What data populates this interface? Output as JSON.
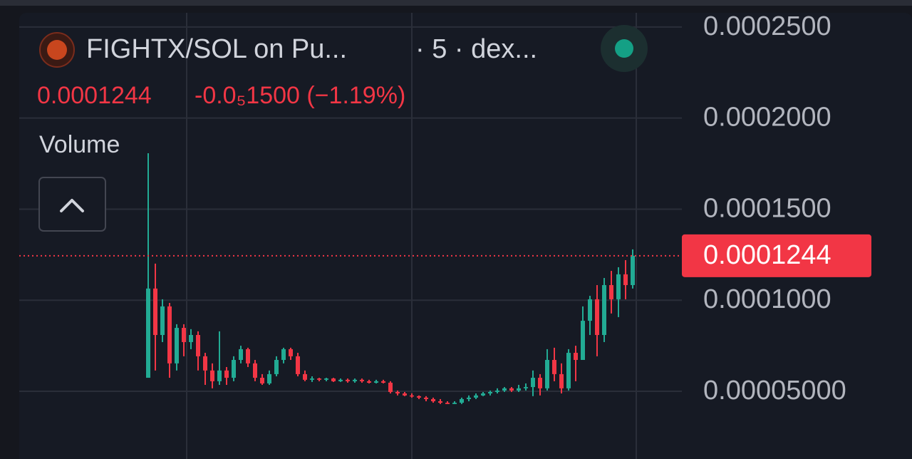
{
  "header": {
    "pair": "FIGHTX/SOL on Pu...",
    "meta": "· 5 · dex...",
    "change": "-0.0₅1500 (−1.19%)",
    "indicator": "Volume"
  },
  "chart_data": {
    "type": "candlestick",
    "up_color": "#22ab94",
    "down_color": "#f23645",
    "grid": true,
    "open": [
      5.74e-05,
      0.0001064,
      8.09e-05,
      9.66e-05,
      6.53e-05,
      8.48e-05,
      7.7e-05,
      8.09e-05,
      6.92e-05,
      6.14e-05,
      5.55e-05,
      6.14e-05,
      5.74e-05,
      6.72e-05,
      7.31e-05,
      6.53e-05,
      5.74e-05,
      5.43e-05,
      5.94e-05,
      6.72e-05,
      7.31e-05,
      6.92e-05,
      5.94e-05,
      5.63e-05,
      5.7e-05,
      5.63e-05,
      5.7e-05,
      5.55e-05,
      5.63e-05,
      5.55e-05,
      5.63e-05,
      5.55e-05,
      5.47e-05,
      5.55e-05,
      5.47e-05,
      4.96e-05,
      4.88e-05,
      4.77e-05,
      4.73e-05,
      4.65e-05,
      4.57e-05,
      4.45e-05,
      4.37e-05,
      4.3e-05,
      4.37e-05,
      4.57e-05,
      4.65e-05,
      4.77e-05,
      4.88e-05,
      4.96e-05,
      5.04e-05,
      5.16e-05,
      5.04e-05,
      5.16e-05,
      5.23e-05,
      5.74e-05,
      5.16e-05,
      6.72e-05,
      5.94e-05,
      5.16e-05,
      7.11e-05,
      6.72e-05,
      8.87e-05,
      0.0001005,
      8.09e-05,
      0.0001083,
      0.0001005,
      0.0001142,
      0.0001083
    ],
    "high": [
      0.0001807,
      0.0001201,
      0.0001005,
      9.85e-05,
      8.68e-05,
      8.68e-05,
      8.41e-05,
      8.29e-05,
      7.11e-05,
      6.53e-05,
      8.29e-05,
      6.33e-05,
      6.92e-05,
      7.5e-05,
      7.39e-05,
      6.72e-05,
      5.94e-05,
      6.14e-05,
      6.92e-05,
      7.39e-05,
      7.39e-05,
      7.11e-05,
      6.14e-05,
      5.82e-05,
      5.74e-05,
      5.74e-05,
      5.74e-05,
      5.7e-05,
      5.7e-05,
      5.7e-05,
      5.7e-05,
      5.63e-05,
      5.63e-05,
      5.63e-05,
      5.55e-05,
      5.04e-05,
      4.96e-05,
      4.88e-05,
      4.77e-05,
      4.73e-05,
      4.65e-05,
      4.57e-05,
      4.45e-05,
      4.45e-05,
      4.65e-05,
      4.77e-05,
      4.88e-05,
      4.96e-05,
      5.04e-05,
      5.16e-05,
      5.23e-05,
      5.23e-05,
      5.35e-05,
      5.43e-05,
      6.14e-05,
      5.94e-05,
      7.31e-05,
      7.39e-05,
      6.53e-05,
      7.31e-05,
      7.5e-05,
      9.66e-05,
      0.0001024,
      0.0001083,
      0.0001122,
      0.0001161,
      0.0001181,
      0.000122,
      0.0001279
    ],
    "low": [
      5.74e-05,
      6.14e-05,
      7.7e-05,
      5.74e-05,
      6.14e-05,
      6.92e-05,
      7.31e-05,
      6.14e-05,
      5.35e-05,
      5.16e-05,
      5.35e-05,
      5.35e-05,
      5.55e-05,
      6.53e-05,
      6.33e-05,
      5.55e-05,
      5.35e-05,
      5.35e-05,
      5.82e-05,
      6.53e-05,
      6.72e-05,
      5.82e-05,
      5.55e-05,
      5.51e-05,
      5.55e-05,
      5.55e-05,
      5.51e-05,
      5.51e-05,
      5.47e-05,
      5.47e-05,
      5.47e-05,
      5.43e-05,
      5.43e-05,
      5.43e-05,
      4.88e-05,
      4.77e-05,
      4.73e-05,
      4.65e-05,
      4.57e-05,
      4.45e-05,
      4.37e-05,
      4.3e-05,
      4.3e-05,
      4.3e-05,
      4.3e-05,
      4.45e-05,
      4.57e-05,
      4.73e-05,
      4.77e-05,
      4.88e-05,
      4.96e-05,
      4.96e-05,
      4.96e-05,
      5.04e-05,
      4.73e-05,
      4.77e-05,
      5.04e-05,
      5.55e-05,
      4.88e-05,
      5.04e-05,
      5.55e-05,
      6.92e-05,
      8.09e-05,
      6.92e-05,
      7.7e-05,
      9.27e-05,
      9.07e-05,
      0.0001005,
      0.0001064
    ],
    "close": [
      0.0001064,
      8.09e-05,
      9.66e-05,
      6.53e-05,
      8.48e-05,
      7.7e-05,
      8.09e-05,
      6.92e-05,
      6.14e-05,
      5.55e-05,
      6.14e-05,
      5.74e-05,
      6.72e-05,
      7.31e-05,
      6.53e-05,
      5.74e-05,
      5.43e-05,
      5.94e-05,
      6.72e-05,
      7.31e-05,
      6.92e-05,
      5.94e-05,
      5.63e-05,
      5.7e-05,
      5.63e-05,
      5.7e-05,
      5.55e-05,
      5.63e-05,
      5.55e-05,
      5.63e-05,
      5.55e-05,
      5.47e-05,
      5.55e-05,
      5.47e-05,
      4.96e-05,
      4.88e-05,
      4.77e-05,
      4.73e-05,
      4.65e-05,
      4.57e-05,
      4.45e-05,
      4.37e-05,
      4.3e-05,
      4.37e-05,
      4.57e-05,
      4.65e-05,
      4.77e-05,
      4.88e-05,
      4.96e-05,
      5.04e-05,
      5.16e-05,
      5.04e-05,
      5.16e-05,
      5.23e-05,
      5.74e-05,
      5.16e-05,
      6.72e-05,
      5.94e-05,
      5.16e-05,
      7.11e-05,
      6.72e-05,
      8.87e-05,
      0.0001005,
      8.09e-05,
      0.0001083,
      0.0001005,
      0.0001142,
      0.0001083,
      0.0001244
    ],
    "last_price": 0.0001244,
    "ylim": [
      1.28e-05,
      0.0002578
    ],
    "yticks": [
      {
        "value": 5e-05,
        "label": "0.00005000"
      },
      {
        "value": 0.0001,
        "label": "0.0001000"
      },
      {
        "value": 0.00015,
        "label": "0.0001500"
      },
      {
        "value": 0.0002,
        "label": "0.0002000"
      },
      {
        "value": 0.00025,
        "label": "0.0002500"
      }
    ]
  }
}
